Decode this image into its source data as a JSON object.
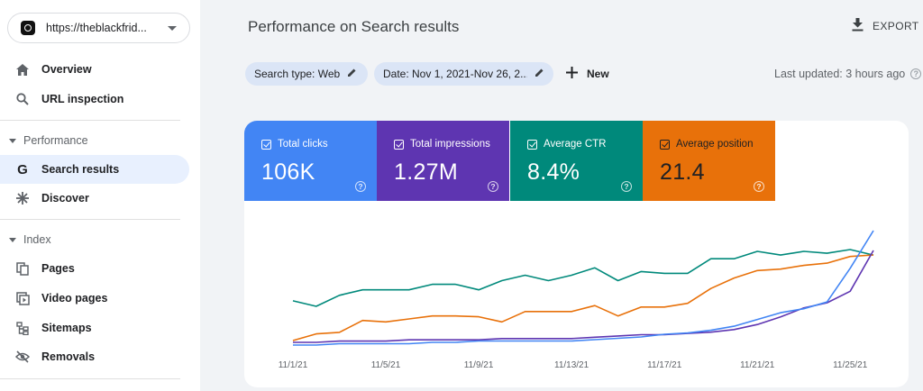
{
  "property": {
    "label": "https://theblackfrid..."
  },
  "nav": {
    "overview": "Overview",
    "url_inspection": "URL inspection",
    "performance_section": "Performance",
    "search_results": "Search results",
    "discover": "Discover",
    "index_section": "Index",
    "pages": "Pages",
    "video_pages": "Video pages",
    "sitemaps": "Sitemaps",
    "removals": "Removals"
  },
  "header": {
    "title": "Performance on Search results",
    "export_label": "EXPORT"
  },
  "filters": {
    "search_type": "Search type: Web",
    "date": "Date: Nov 1, 2021-Nov 26, 2...",
    "new_label": "New",
    "last_updated": "Last updated: 3 hours ago"
  },
  "metrics": [
    {
      "label": "Total clicks",
      "value": "106K",
      "color": "#4285f4"
    },
    {
      "label": "Total impressions",
      "value": "1.27M",
      "color": "#5e35b1"
    },
    {
      "label": "Average CTR",
      "value": "8.4%",
      "color": "#00897b"
    },
    {
      "label": "Average position",
      "value": "21.4",
      "color": "#e8710a"
    }
  ],
  "chart_data": {
    "type": "line",
    "categories": [
      "11/1/21",
      "11/2/21",
      "11/3/21",
      "11/4/21",
      "11/5/21",
      "11/6/21",
      "11/7/21",
      "11/8/21",
      "11/9/21",
      "11/10/21",
      "11/11/21",
      "11/12/21",
      "11/13/21",
      "11/14/21",
      "11/15/21",
      "11/16/21",
      "11/17/21",
      "11/18/21",
      "11/19/21",
      "11/20/21",
      "11/21/21",
      "11/22/21",
      "11/23/21",
      "11/24/21",
      "11/25/21",
      "11/26/21"
    ],
    "tick_labels": [
      "11/1/21",
      "11/5/21",
      "11/9/21",
      "11/13/21",
      "11/17/21",
      "11/21/21",
      "11/25/21"
    ],
    "series": [
      {
        "color": "#00897b",
        "values": [
          8.0,
          7.7,
          8.3,
          8.6,
          8.6,
          8.6,
          8.9,
          8.9,
          8.6,
          9.1,
          9.4,
          9.1,
          9.4,
          9.8,
          9.1,
          9.6,
          9.5,
          9.5,
          10.3,
          10.3,
          10.7,
          10.5,
          10.7,
          10.6,
          10.8,
          10.5
        ]
      },
      {
        "color": "#e8710a",
        "values": [
          26.8,
          25.9,
          25.7,
          24.1,
          24.3,
          23.9,
          23.5,
          23.5,
          23.6,
          24.3,
          22.9,
          22.9,
          22.9,
          22.1,
          23.5,
          22.3,
          22.3,
          21.8,
          19.8,
          18.4,
          17.4,
          17.2,
          16.7,
          16.4,
          15.5,
          15.3
        ]
      },
      {
        "color": "#5e35b1",
        "values": [
          2.2,
          2.2,
          2.3,
          2.3,
          2.3,
          2.4,
          2.4,
          2.4,
          2.4,
          2.5,
          2.5,
          2.5,
          2.5,
          2.6,
          2.7,
          2.8,
          2.8,
          2.9,
          3.0,
          3.2,
          3.6,
          4.2,
          4.9,
          5.3,
          6.2,
          9.4
        ]
      },
      {
        "color": "#4285f4",
        "values": [
          1.2,
          1.2,
          1.3,
          1.3,
          1.3,
          1.3,
          1.4,
          1.4,
          1.5,
          1.5,
          1.5,
          1.5,
          1.5,
          1.6,
          1.7,
          1.8,
          2.0,
          2.1,
          2.3,
          2.6,
          3.1,
          3.6,
          3.9,
          4.4,
          6.9,
          9.7
        ]
      }
    ]
  }
}
